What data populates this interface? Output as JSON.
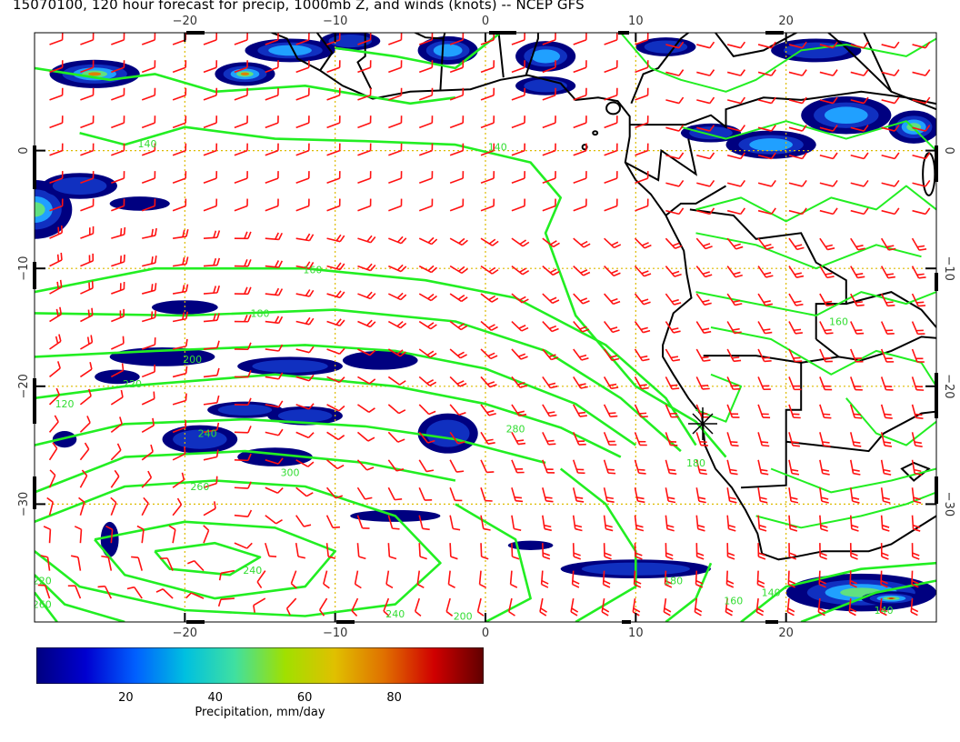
{
  "title": "15070100, 120 hour forecast for precip, 1000mb Z, and winds (knots) -- NCEP GFS",
  "map": {
    "lon_min": -30,
    "lon_max": 30,
    "lat_min": -40,
    "lat_max": 10,
    "lon_ticks": [
      -20,
      -10,
      0,
      10,
      20
    ],
    "lat_ticks": [
      0,
      -10,
      -20,
      -30
    ],
    "lon_tick_labels": [
      "−20",
      "−10",
      "0",
      "10",
      "20"
    ],
    "lat_tick_labels": [
      "0",
      "−10",
      "−20",
      "−30"
    ],
    "contour_labels": [
      "140",
      "140",
      "160",
      "180",
      "200",
      "220",
      "240",
      "260",
      "280",
      "300",
      "240",
      "220",
      "260",
      "240",
      "200",
      "180",
      "160",
      "140",
      "140",
      "160",
      "180",
      "120"
    ],
    "colors": {
      "contour": "#22ee22",
      "wind": "#ff1111",
      "grid": "#ddbb00",
      "coast": "#000000"
    }
  },
  "colorbar": {
    "title": "Precipitation, mm/day",
    "ticks": [
      "20",
      "40",
      "60",
      "80"
    ],
    "tick_values": [
      20,
      40,
      60,
      80
    ],
    "min": 0,
    "max": 100,
    "colors": [
      "#000080",
      "#0000d0",
      "#0060ff",
      "#00c0e0",
      "#40e0a0",
      "#a0e000",
      "#e0c000",
      "#e07000",
      "#d00000",
      "#600000"
    ]
  }
}
